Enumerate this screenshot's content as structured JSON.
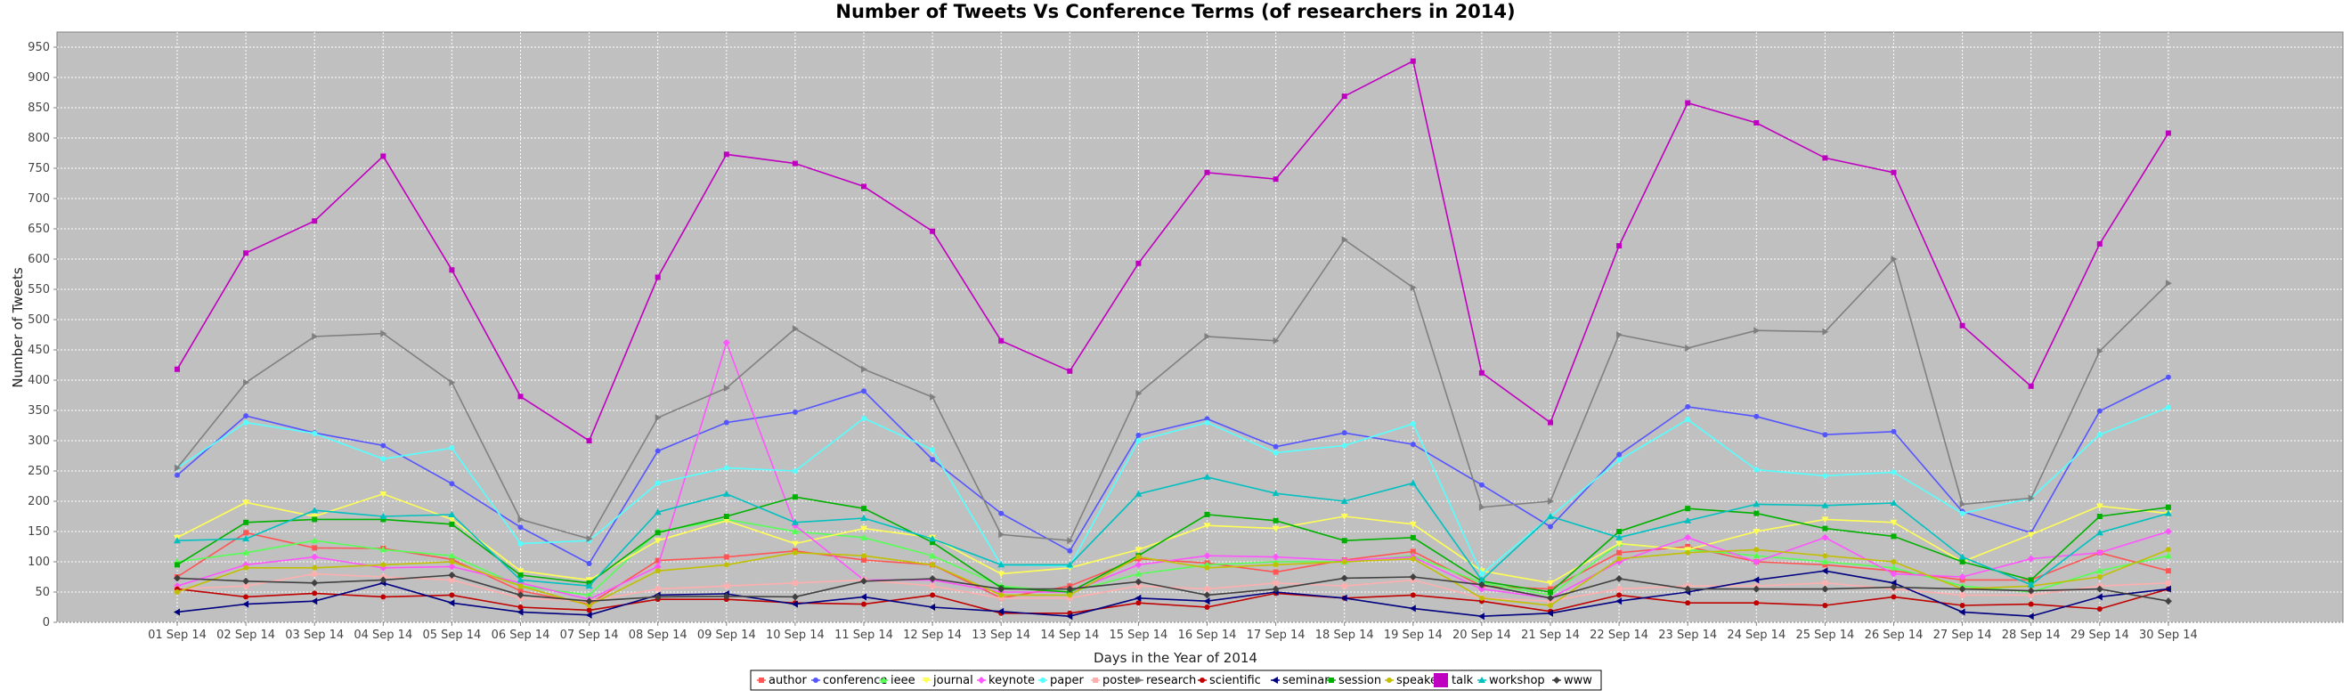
{
  "chart_data": {
    "type": "line",
    "title": "Number of Tweets Vs Conference Terms (of researchers in 2014)",
    "xlabel": "Days in the Year of 2014",
    "ylabel": "Number of Tweets",
    "ylim": [
      0,
      975
    ],
    "yticks": [
      0,
      50,
      100,
      150,
      200,
      250,
      300,
      350,
      400,
      450,
      500,
      550,
      600,
      650,
      700,
      750,
      800,
      850,
      900,
      950
    ],
    "grid": true,
    "legend_position": "bottom",
    "background_color": "#c0c0c0",
    "categories": [
      "01 Sep 14",
      "02 Sep 14",
      "03 Sep 14",
      "04 Sep 14",
      "05 Sep 14",
      "06 Sep 14",
      "07 Sep 14",
      "08 Sep 14",
      "09 Sep 14",
      "10 Sep 14",
      "11 Sep 14",
      "12 Sep 14",
      "13 Sep 14",
      "14 Sep 14",
      "15 Sep 14",
      "16 Sep 14",
      "17 Sep 14",
      "18 Sep 14",
      "19 Sep 14",
      "20 Sep 14",
      "21 Sep 14",
      "22 Sep 14",
      "23 Sep 14",
      "24 Sep 14",
      "25 Sep 14",
      "26 Sep 14",
      "27 Sep 14",
      "28 Sep 14",
      "29 Sep 14",
      "30 Sep 14"
    ],
    "series": [
      {
        "name": "author",
        "color": "#ff5555",
        "marker": "square",
        "values": [
          75,
          148,
          123,
          122,
          104,
          52,
          30,
          102,
          108,
          118,
          103,
          95,
          40,
          60,
          105,
          98,
          83,
          103,
          117,
          60,
          55,
          115,
          125,
          100,
          95,
          85,
          70,
          70,
          115,
          85
        ]
      },
      {
        "name": "conference",
        "color": "#5555ff",
        "marker": "circle",
        "values": [
          243,
          341,
          313,
          292,
          229,
          157,
          97,
          283,
          330,
          347,
          382,
          269,
          180,
          118,
          309,
          336,
          290,
          313,
          294,
          227,
          158,
          277,
          356,
          340,
          310,
          315,
          183,
          148,
          349,
          405
        ]
      },
      {
        "name": "ieee",
        "color": "#55ff55",
        "marker": "triangle-up",
        "values": [
          100,
          115,
          135,
          120,
          110,
          60,
          45,
          150,
          170,
          150,
          140,
          110,
          60,
          50,
          80,
          95,
          100,
          100,
          110,
          65,
          45,
          130,
          120,
          110,
          100,
          90,
          60,
          50,
          85,
          110
        ]
      },
      {
        "name": "journal",
        "color": "#ffff55",
        "marker": "triangle-down",
        "values": [
          140,
          198,
          175,
          212,
          170,
          85,
          70,
          135,
          168,
          130,
          155,
          140,
          80,
          90,
          120,
          160,
          155,
          175,
          162,
          85,
          65,
          130,
          120,
          150,
          170,
          165,
          100,
          145,
          192,
          180
        ]
      },
      {
        "name": "keynote",
        "color": "#ff55ff",
        "marker": "diamond",
        "values": [
          60,
          95,
          108,
          90,
          92,
          65,
          38,
          92,
          462,
          160,
          70,
          70,
          50,
          50,
          95,
          110,
          108,
          102,
          108,
          55,
          40,
          100,
          140,
          100,
          140,
          80,
          75,
          105,
          115,
          150
        ]
      },
      {
        "name": "paper",
        "color": "#55ffff",
        "marker": "circle",
        "values": [
          255,
          330,
          312,
          270,
          288,
          130,
          135,
          230,
          255,
          250,
          337,
          285,
          95,
          93,
          300,
          330,
          280,
          292,
          328,
          80,
          175,
          268,
          335,
          252,
          242,
          248,
          180,
          205,
          310,
          355
        ]
      },
      {
        "name": "poster",
        "color": "#ffafaf",
        "marker": "square",
        "values": [
          55,
          60,
          80,
          75,
          70,
          40,
          35,
          55,
          60,
          65,
          70,
          60,
          40,
          40,
          60,
          55,
          65,
          60,
          70,
          40,
          35,
          55,
          60,
          60,
          65,
          55,
          45,
          45,
          60,
          65
        ]
      },
      {
        "name": "research",
        "color": "#808080",
        "marker": "triangle-right",
        "values": [
          255,
          396,
          472,
          477,
          396,
          170,
          138,
          338,
          387,
          485,
          418,
          372,
          145,
          135,
          378,
          472,
          465,
          632,
          553,
          190,
          200,
          475,
          453,
          482,
          480,
          600,
          195,
          205,
          448,
          560
        ]
      },
      {
        "name": "scientific",
        "color": "#c00000",
        "marker": "circle",
        "values": [
          55,
          42,
          48,
          42,
          45,
          25,
          20,
          38,
          38,
          32,
          30,
          45,
          15,
          15,
          32,
          25,
          48,
          40,
          45,
          35,
          18,
          45,
          32,
          32,
          28,
          42,
          28,
          30,
          22,
          55
        ]
      },
      {
        "name": "seminar",
        "color": "#000080",
        "marker": "triangle-left",
        "values": [
          17,
          30,
          35,
          65,
          32,
          17,
          12,
          45,
          47,
          30,
          42,
          25,
          18,
          10,
          40,
          35,
          50,
          40,
          23,
          10,
          15,
          35,
          50,
          70,
          85,
          65,
          17,
          10,
          42,
          55
        ]
      },
      {
        "name": "session",
        "color": "#00b000",
        "marker": "square",
        "values": [
          95,
          165,
          170,
          170,
          162,
          78,
          65,
          148,
          175,
          207,
          188,
          132,
          57,
          50,
          110,
          178,
          168,
          135,
          140,
          68,
          50,
          150,
          188,
          180,
          155,
          142,
          100,
          70,
          175,
          190
        ]
      },
      {
        "name": "speaker",
        "color": "#c0c000",
        "marker": "circle",
        "values": [
          50,
          90,
          90,
          95,
          100,
          60,
          28,
          85,
          95,
          115,
          110,
          95,
          45,
          45,
          108,
          90,
          95,
          100,
          105,
          40,
          28,
          105,
          115,
          120,
          110,
          100,
          55,
          60,
          75,
          120
        ]
      },
      {
        "name": "talk",
        "color": "#c000c0",
        "marker": "square",
        "values": [
          418,
          610,
          663,
          770,
          582,
          373,
          300,
          570,
          773,
          758,
          720,
          646,
          465,
          415,
          593,
          743,
          732,
          869,
          927,
          412,
          330,
          622,
          858,
          825,
          767,
          743,
          490,
          390,
          625,
          808
        ]
      },
      {
        "name": "workshop",
        "color": "#00c0c0",
        "marker": "triangle-up",
        "values": [
          135,
          138,
          185,
          175,
          178,
          70,
          60,
          182,
          212,
          165,
          172,
          138,
          95,
          95,
          212,
          240,
          213,
          200,
          230,
          70,
          175,
          140,
          168,
          195,
          193,
          197,
          108,
          62,
          148,
          180
        ]
      },
      {
        "name": "www",
        "color": "#404040",
        "marker": "diamond",
        "values": [
          73,
          68,
          65,
          70,
          78,
          45,
          35,
          42,
          43,
          42,
          68,
          72,
          55,
          55,
          67,
          45,
          55,
          73,
          75,
          62,
          40,
          72,
          55,
          55,
          55,
          58,
          55,
          52,
          55,
          35
        ]
      }
    ]
  }
}
